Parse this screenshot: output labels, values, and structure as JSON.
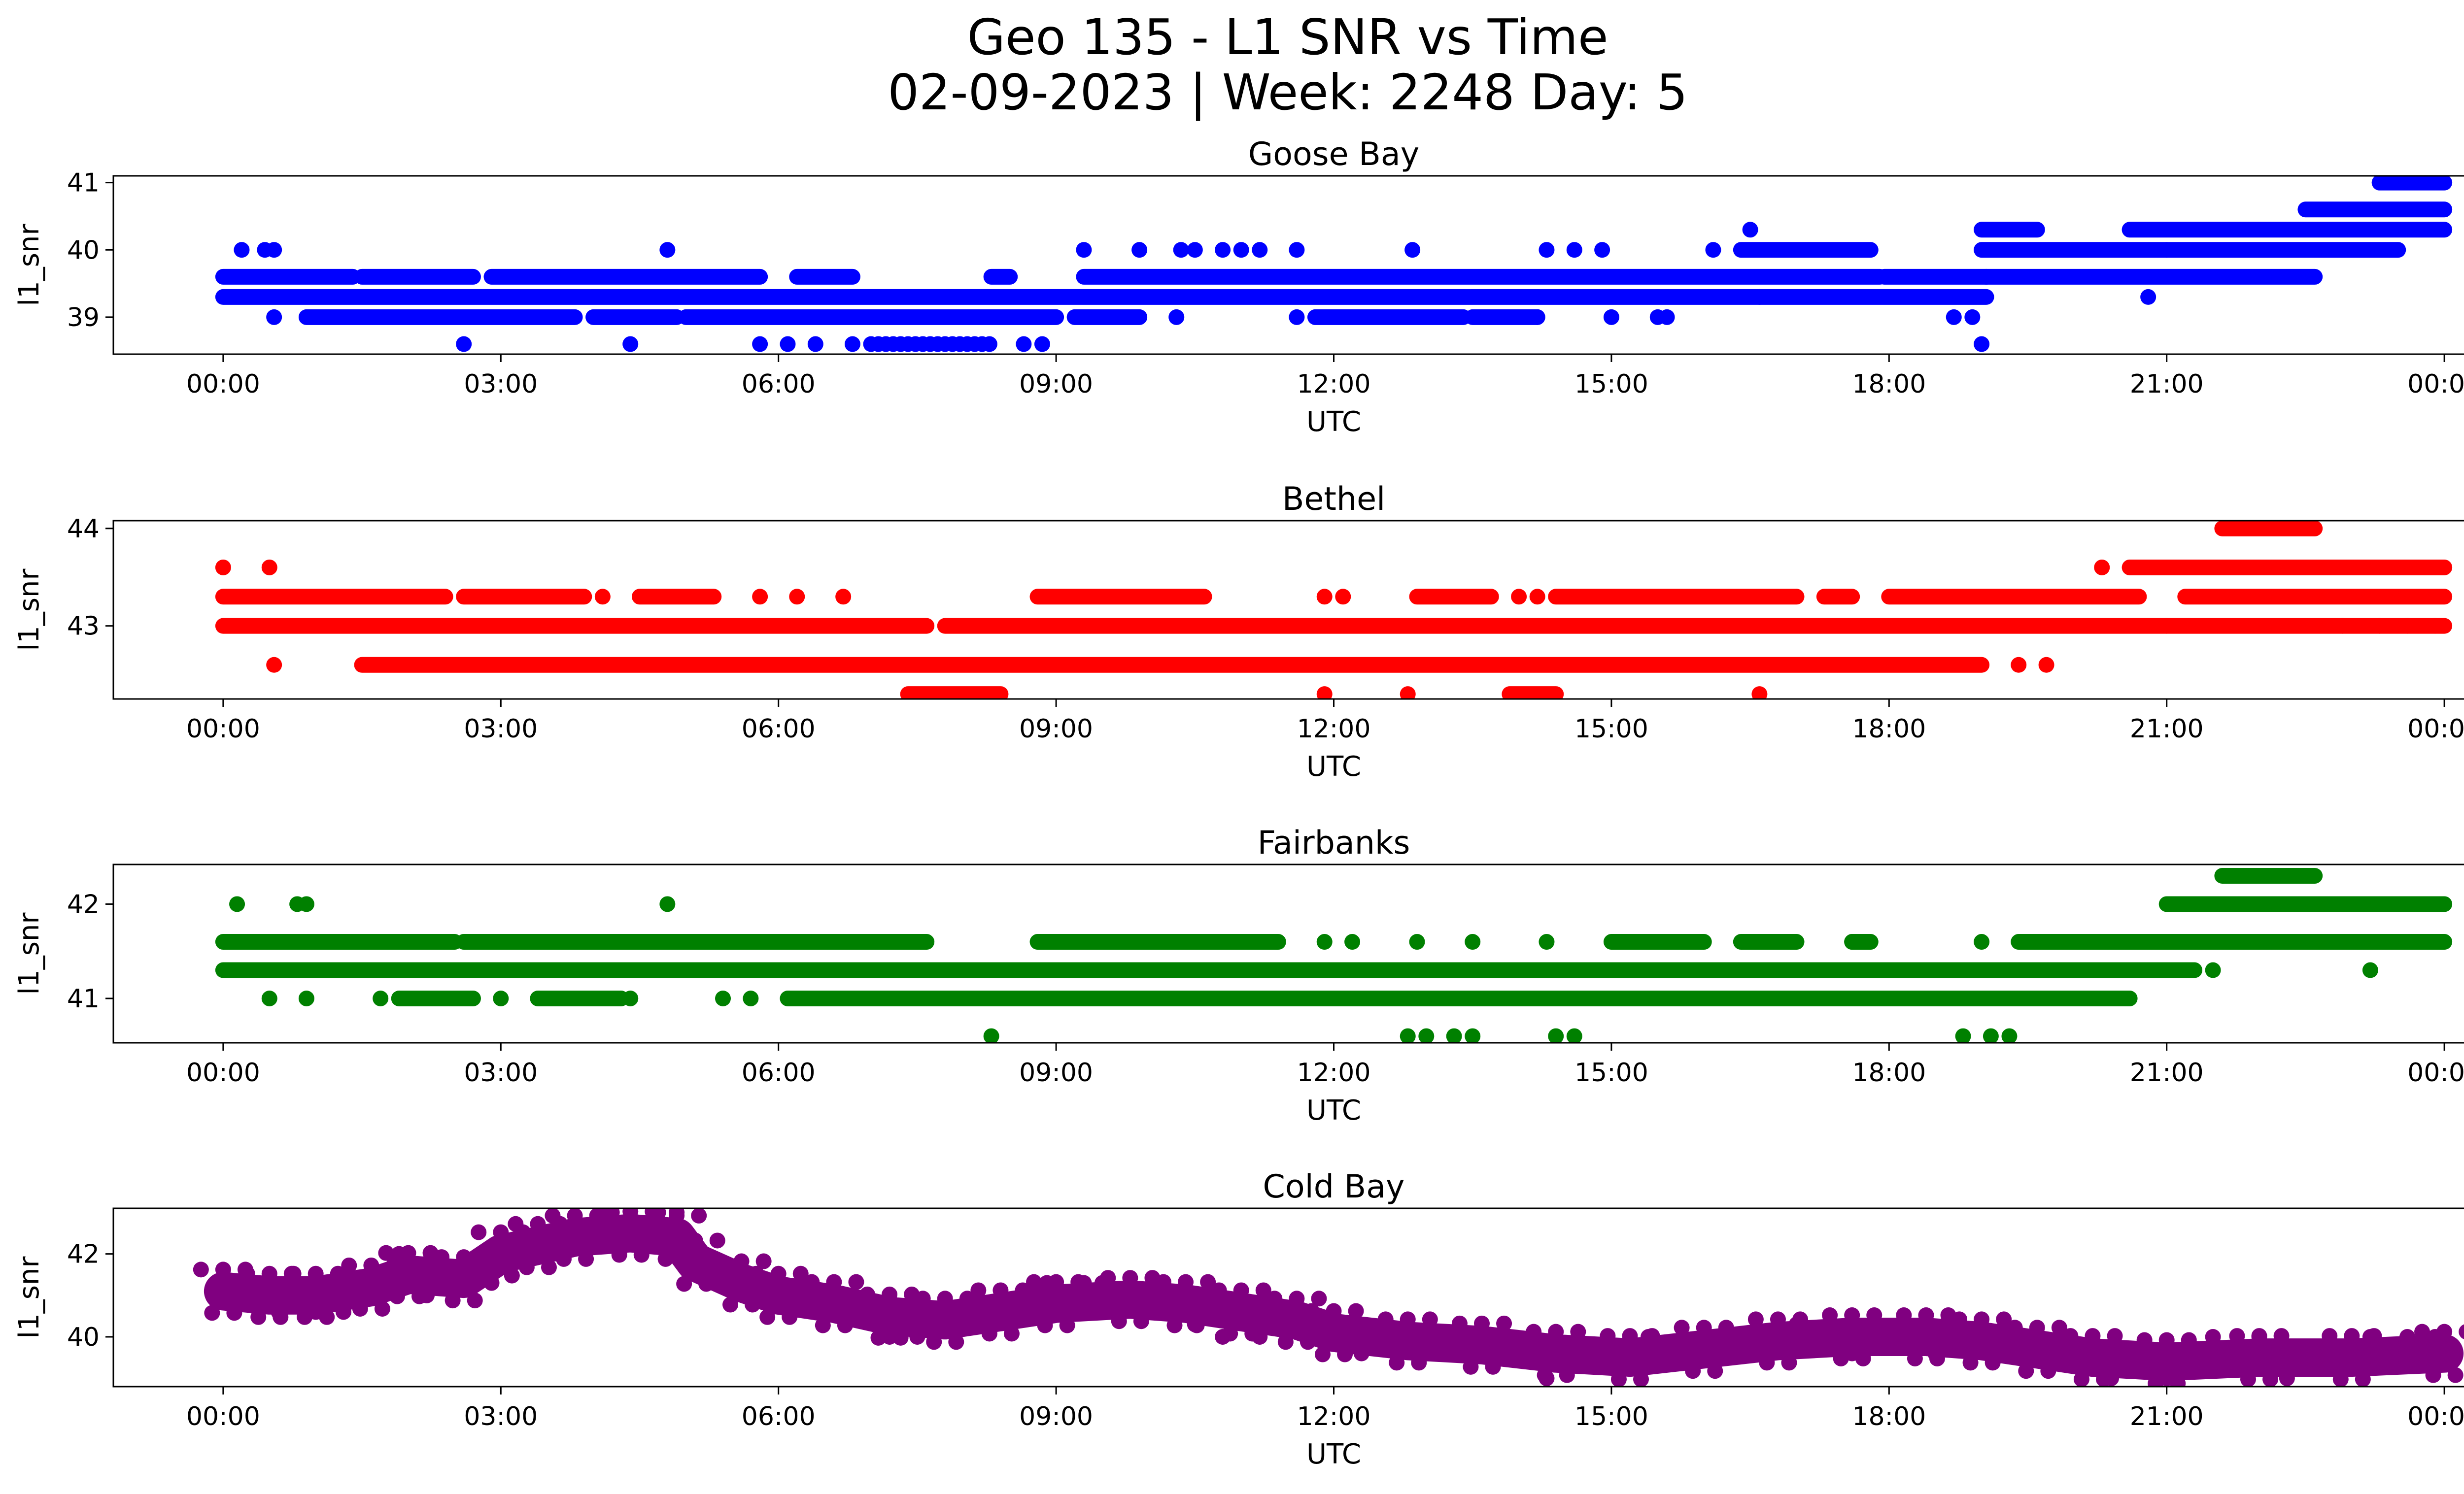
{
  "figure": {
    "title_line1": "Geo 135 - L1 SNR vs Time",
    "title_line2": "02-09-2023 | Week: 2248 Day: 5"
  },
  "chart_data": [
    {
      "type": "scatter",
      "title": "Goose Bay",
      "xlabel": "UTC",
      "ylabel": "l1_snr",
      "color": "#0000ff",
      "xlim": [
        "00:00",
        "24:00"
      ],
      "ylim": [
        38.45,
        41.1
      ],
      "yticks": [
        39,
        40,
        41
      ],
      "xticks": [
        "00:00",
        "03:00",
        "06:00",
        "09:00",
        "12:00",
        "15:00",
        "18:00",
        "21:00",
        "00:00"
      ],
      "bands": [
        {
          "y": 39.3,
          "segments": [
            [
              0.0,
              19.05
            ]
          ]
        },
        {
          "y": 39.6,
          "segments": [
            [
              0.0,
              1.4
            ],
            [
              1.5,
              2.7
            ],
            [
              2.9,
              5.8
            ],
            [
              6.2,
              6.8
            ],
            [
              8.3,
              8.5
            ],
            [
              9.3,
              17.9
            ],
            [
              17.95,
              19.05
            ],
            [
              19.05,
              22.6
            ]
          ]
        },
        {
          "y": 39.0,
          "segments": [
            [
              0.9,
              3.8
            ],
            [
              4.0,
              4.9
            ],
            [
              5.0,
              9.0
            ],
            [
              9.2,
              9.9
            ],
            [
              11.8,
              13.4
            ],
            [
              13.5,
              14.2
            ]
          ]
        },
        {
          "y": 40.0,
          "segments": [
            [
              16.4,
              17.8
            ],
            [
              19.0,
              21.0
            ],
            [
              21.0,
              23.5
            ]
          ]
        },
        {
          "y": 40.3,
          "segments": [
            [
              19.0,
              19.6
            ],
            [
              20.6,
              24.0
            ]
          ]
        },
        {
          "y": 40.6,
          "segments": [
            [
              22.5,
              24.0
            ]
          ]
        },
        {
          "y": 41.0,
          "segments": [
            [
              23.3,
              24.0
            ]
          ]
        }
      ],
      "points": [
        [
          0.2,
          40.0
        ],
        [
          0.45,
          40.0
        ],
        [
          0.55,
          40.0
        ],
        [
          0.55,
          39.0
        ],
        [
          4.8,
          40.0
        ],
        [
          9.3,
          40.0
        ],
        [
          9.9,
          40.0
        ],
        [
          10.35,
          40.0
        ],
        [
          10.5,
          40.0
        ],
        [
          10.8,
          40.0
        ],
        [
          11.0,
          40.0
        ],
        [
          11.2,
          40.0
        ],
        [
          11.6,
          40.0
        ],
        [
          12.85,
          40.0
        ],
        [
          14.3,
          40.0
        ],
        [
          14.6,
          40.0
        ],
        [
          14.9,
          40.0
        ],
        [
          16.5,
          40.3
        ],
        [
          16.1,
          40.0
        ],
        [
          18.7,
          39.0
        ],
        [
          18.9,
          39.0
        ],
        [
          10.3,
          39.0
        ],
        [
          11.6,
          39.0
        ],
        [
          14.2,
          39.0
        ],
        [
          15.0,
          39.0
        ],
        [
          15.6,
          39.0
        ],
        [
          15.5,
          39.0
        ],
        [
          16.6,
          39.3
        ],
        [
          20.8,
          39.3
        ],
        [
          2.6,
          38.6
        ],
        [
          4.4,
          38.6
        ],
        [
          5.8,
          38.6
        ],
        [
          6.1,
          38.6
        ],
        [
          6.4,
          38.6
        ],
        [
          6.8,
          38.6
        ],
        [
          8.65,
          38.6
        ],
        [
          8.85,
          38.6
        ],
        [
          19.0,
          38.6
        ]
      ],
      "point_runs": [
        {
          "y": 38.6,
          "from": 7.0,
          "to": 8.3
        }
      ]
    },
    {
      "type": "scatter",
      "title": "Bethel",
      "xlabel": "UTC",
      "ylabel": "l1_snr",
      "color": "#ff0000",
      "xlim": [
        "00:00",
        "24:00"
      ],
      "ylim": [
        42.25,
        44.08
      ],
      "yticks": [
        43,
        44
      ],
      "xticks": [
        "00:00",
        "03:00",
        "06:00",
        "09:00",
        "12:00",
        "15:00",
        "18:00",
        "21:00",
        "00:00"
      ],
      "bands": [
        {
          "y": 43.0,
          "segments": [
            [
              0.0,
              7.6
            ],
            [
              7.8,
              21.0
            ],
            [
              21.0,
              24.0
            ]
          ]
        },
        {
          "y": 42.6,
          "segments": [
            [
              1.5,
              19.0
            ]
          ]
        },
        {
          "y": 43.3,
          "segments": [
            [
              0.0,
              2.4
            ],
            [
              2.6,
              3.9
            ],
            [
              4.5,
              5.3
            ],
            [
              8.8,
              10.6
            ],
            [
              12.9,
              13.7
            ],
            [
              14.4,
              17.0
            ],
            [
              17.3,
              17.6
            ],
            [
              18.0,
              20.7
            ],
            [
              21.2,
              24.0
            ]
          ]
        },
        {
          "y": 43.6,
          "segments": [
            [
              20.6,
              24.0
            ]
          ]
        },
        {
          "y": 44.0,
          "segments": [
            [
              21.6,
              22.6
            ]
          ]
        },
        {
          "y": 42.3,
          "segments": [
            [
              7.4,
              8.4
            ],
            [
              13.9,
              14.4
            ]
          ]
        }
      ],
      "points": [
        [
          0.0,
          43.6
        ],
        [
          0.5,
          43.6
        ],
        [
          0.55,
          42.6
        ],
        [
          4.1,
          43.3
        ],
        [
          5.8,
          43.3
        ],
        [
          6.2,
          43.3
        ],
        [
          6.7,
          43.3
        ],
        [
          11.9,
          43.3
        ],
        [
          12.1,
          43.3
        ],
        [
          14.0,
          43.3
        ],
        [
          14.2,
          43.3
        ],
        [
          19.4,
          42.6
        ],
        [
          19.7,
          42.6
        ],
        [
          20.3,
          43.6
        ],
        [
          22.9,
          43.0
        ],
        [
          23.3,
          43.0
        ],
        [
          23.6,
          43.0
        ],
        [
          23.9,
          43.0
        ],
        [
          11.9,
          42.3
        ],
        [
          12.8,
          42.3
        ],
        [
          16.6,
          42.3
        ]
      ],
      "point_runs": []
    },
    {
      "type": "scatter",
      "title": "Fairbanks",
      "xlabel": "UTC",
      "ylabel": "l1_snr",
      "color": "#008000",
      "xlim": [
        "00:00",
        "24:00"
      ],
      "ylim": [
        40.53,
        42.42
      ],
      "yticks": [
        41,
        42
      ],
      "xticks": [
        "00:00",
        "03:00",
        "06:00",
        "09:00",
        "12:00",
        "15:00",
        "18:00",
        "21:00",
        "00:00"
      ],
      "bands": [
        {
          "y": 41.3,
          "segments": [
            [
              0.0,
              21.3
            ]
          ]
        },
        {
          "y": 41.6,
          "segments": [
            [
              0.0,
              2.5
            ],
            [
              2.6,
              7.6
            ],
            [
              8.8,
              11.4
            ],
            [
              15.0,
              16.0
            ],
            [
              16.4,
              17.0
            ],
            [
              17.6,
              17.8
            ],
            [
              19.4,
              24.0
            ]
          ]
        },
        {
          "y": 41.0,
          "segments": [
            [
              1.9,
              2.7
            ],
            [
              3.4,
              4.3
            ],
            [
              6.1,
              20.6
            ]
          ]
        },
        {
          "y": 42.0,
          "segments": [
            [
              21.0,
              24.0
            ]
          ]
        },
        {
          "y": 42.3,
          "segments": [
            [
              21.6,
              22.6
            ]
          ]
        }
      ],
      "points": [
        [
          0.15,
          42.0
        ],
        [
          0.8,
          42.0
        ],
        [
          0.9,
          42.0
        ],
        [
          4.8,
          42.0
        ],
        [
          0.5,
          41.0
        ],
        [
          0.9,
          41.0
        ],
        [
          1.7,
          41.0
        ],
        [
          3.0,
          41.0
        ],
        [
          4.4,
          41.0
        ],
        [
          5.4,
          41.0
        ],
        [
          5.7,
          41.0
        ],
        [
          11.9,
          41.6
        ],
        [
          12.2,
          41.6
        ],
        [
          12.9,
          41.6
        ],
        [
          13.5,
          41.6
        ],
        [
          14.3,
          41.6
        ],
        [
          15.8,
          41.6
        ],
        [
          17.6,
          41.6
        ],
        [
          21.5,
          41.3
        ],
        [
          23.2,
          41.3
        ],
        [
          8.3,
          40.6
        ],
        [
          12.8,
          40.6
        ],
        [
          13.0,
          40.6
        ],
        [
          13.3,
          40.6
        ],
        [
          13.5,
          40.6
        ],
        [
          14.4,
          40.6
        ],
        [
          14.6,
          40.6
        ],
        [
          18.8,
          40.6
        ],
        [
          19.1,
          40.6
        ],
        [
          19.3,
          40.6
        ],
        [
          19.0,
          41.6
        ]
      ],
      "point_runs": []
    },
    {
      "type": "scatter",
      "title": "Cold Bay",
      "xlabel": "UTC",
      "ylabel": "l1_snr",
      "color": "#800080",
      "xlim": [
        "00:00",
        "24:00"
      ],
      "ylim": [
        38.8,
        43.1
      ],
      "yticks": [
        40,
        42
      ],
      "xticks": [
        "00:00",
        "03:00",
        "06:00",
        "09:00",
        "12:00",
        "15:00",
        "18:00",
        "21:00",
        "00:00"
      ],
      "trend": [
        [
          0.0,
          41.1
        ],
        [
          0.5,
          41.0
        ],
        [
          1.0,
          41.0
        ],
        [
          1.6,
          41.2
        ],
        [
          2.0,
          41.5
        ],
        [
          2.6,
          41.4
        ],
        [
          3.0,
          42.0
        ],
        [
          3.4,
          42.2
        ],
        [
          3.8,
          42.4
        ],
        [
          4.4,
          42.5
        ],
        [
          4.9,
          42.4
        ],
        [
          5.1,
          41.8
        ],
        [
          5.6,
          41.3
        ],
        [
          6.0,
          41.0
        ],
        [
          6.6,
          40.8
        ],
        [
          7.2,
          40.5
        ],
        [
          7.8,
          40.4
        ],
        [
          8.4,
          40.6
        ],
        [
          9.0,
          40.8
        ],
        [
          9.8,
          40.9
        ],
        [
          10.4,
          40.8
        ],
        [
          11.0,
          40.6
        ],
        [
          11.6,
          40.4
        ],
        [
          12.0,
          40.1
        ],
        [
          12.8,
          39.9
        ],
        [
          13.6,
          39.8
        ],
        [
          14.4,
          39.6
        ],
        [
          15.2,
          39.5
        ],
        [
          16.0,
          39.7
        ],
        [
          16.8,
          39.9
        ],
        [
          17.6,
          40.0
        ],
        [
          18.4,
          40.0
        ],
        [
          19.0,
          39.9
        ],
        [
          19.6,
          39.7
        ],
        [
          20.2,
          39.5
        ],
        [
          21.0,
          39.4
        ],
        [
          22.0,
          39.5
        ],
        [
          23.0,
          39.5
        ],
        [
          24.0,
          39.6
        ]
      ],
      "points": [
        [
          0.0,
          41.1
        ],
        [
          0.6,
          40.6
        ],
        [
          1.0,
          40.6
        ],
        [
          1.3,
          40.6
        ],
        [
          1.9,
          42.0
        ],
        [
          2.2,
          41.0
        ],
        [
          2.9,
          41.3
        ],
        [
          3.6,
          42.6
        ],
        [
          4.2,
          43.0
        ],
        [
          4.7,
          43.0
        ],
        [
          4.9,
          43.0
        ],
        [
          7.2,
          40.0
        ],
        [
          7.5,
          40.0
        ],
        [
          8.9,
          41.3
        ],
        [
          9.3,
          41.3
        ],
        [
          9.5,
          41.3
        ],
        [
          10.5,
          40.3
        ],
        [
          10.8,
          40.0
        ],
        [
          11.2,
          40.0
        ],
        [
          11.9,
          40.3
        ],
        [
          12.3,
          39.6
        ],
        [
          14.3,
          39.0
        ],
        [
          15.4,
          40.0
        ],
        [
          17.0,
          40.3
        ],
        [
          17.6,
          39.6
        ],
        [
          18.5,
          39.6
        ],
        [
          19.4,
          40.0
        ],
        [
          20.4,
          39.0
        ],
        [
          21.5,
          40.0
        ],
        [
          22.0,
          40.0
        ],
        [
          22.5,
          39.6
        ],
        [
          23.2,
          40.0
        ],
        [
          23.6,
          40.0
        ],
        [
          23.9,
          40.0
        ],
        [
          21.0,
          39.0
        ],
        [
          22.3,
          39.0
        ]
      ],
      "point_runs": []
    }
  ]
}
